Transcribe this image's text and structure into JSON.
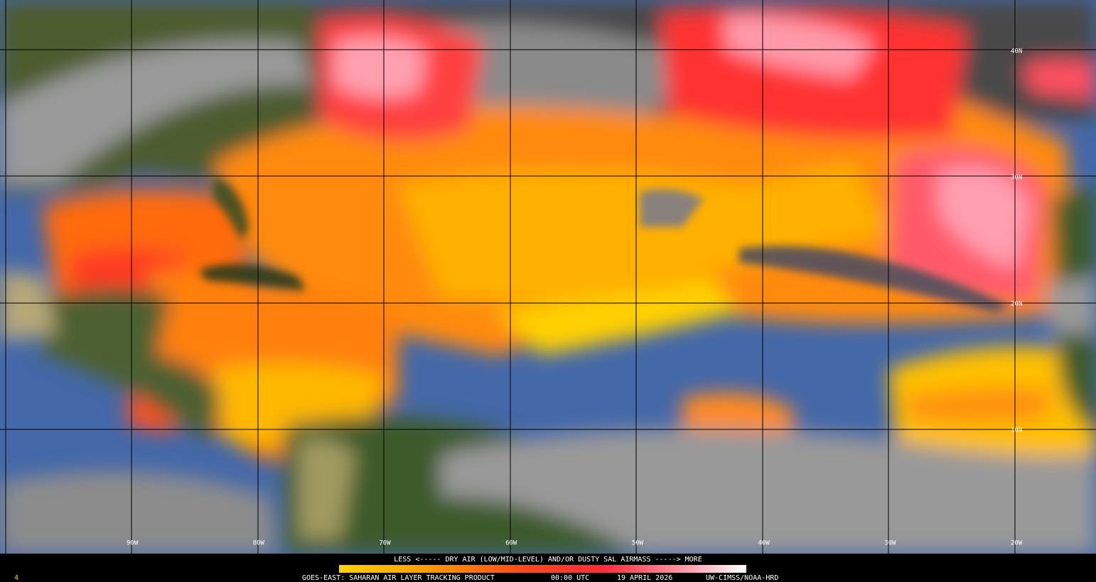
{
  "map": {
    "grid": {
      "longitude_labels": [
        "90W",
        "80W",
        "70W",
        "60W",
        "50W",
        "40W",
        "30W",
        "20W"
      ],
      "latitude_labels": [
        "40N",
        "30N",
        "20N",
        "10N"
      ]
    },
    "legend": {
      "caption": "LESS <----- DRY AIR (LOW/MID-LEVEL) AND/OR DUSTY SAL AIRMASS -----> MORE"
    },
    "footer": {
      "product": "GOES-EAST: SAHARAN AIR LAYER TRACKING PRODUCT",
      "time": "00:00 UTC",
      "date": "19 APRIL 2026",
      "credit": "UW-CIMSS/NOAA-HRD"
    },
    "corner_label": "4"
  }
}
